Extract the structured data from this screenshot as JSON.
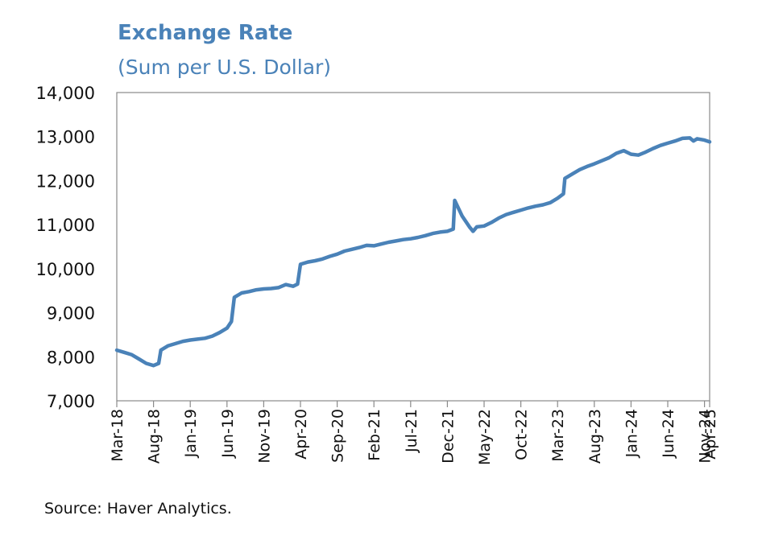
{
  "chart_data": {
    "type": "line",
    "title": "Exchange Rate",
    "subtitle": "(Sum per U.S. Dollar)",
    "xlabel": "",
    "ylabel": "",
    "ylim": [
      7000,
      14000
    ],
    "yticks": [
      "7,000",
      "8,000",
      "9,000",
      "10,000",
      "11,000",
      "12,000",
      "13,000",
      "14,000"
    ],
    "x_tick_labels": [
      "Mar-18",
      "Aug-18",
      "Jan-19",
      "Jun-19",
      "Nov-19",
      "Apr-20",
      "Sep-20",
      "Feb-21",
      "Jul-21",
      "Dec-21",
      "May-22",
      "Oct-22",
      "Mar-23",
      "Aug-23",
      "Jan-24",
      "Jun-24",
      "Nov-24",
      "Apr-25"
    ],
    "grid": false,
    "legend": "none",
    "line_color": "#4a82b8",
    "series": [
      {
        "name": "Sum per U.S. Dollar",
        "points": [
          [
            0,
            8150
          ],
          [
            1,
            8100
          ],
          [
            2,
            8050
          ],
          [
            3,
            7950
          ],
          [
            4,
            7850
          ],
          [
            5,
            7800
          ],
          [
            5.7,
            7850
          ],
          [
            6,
            8150
          ],
          [
            7,
            8250
          ],
          [
            8,
            8300
          ],
          [
            9,
            8350
          ],
          [
            10,
            8380
          ],
          [
            11,
            8400
          ],
          [
            12,
            8420
          ],
          [
            13,
            8470
          ],
          [
            14,
            8550
          ],
          [
            15,
            8650
          ],
          [
            15.6,
            8800
          ],
          [
            16,
            9350
          ],
          [
            17,
            9450
          ],
          [
            18,
            9480
          ],
          [
            19,
            9520
          ],
          [
            20,
            9540
          ],
          [
            21,
            9550
          ],
          [
            22,
            9570
          ],
          [
            23,
            9640
          ],
          [
            24,
            9600
          ],
          [
            24.6,
            9650
          ],
          [
            25,
            10100
          ],
          [
            26,
            10150
          ],
          [
            27,
            10180
          ],
          [
            28,
            10220
          ],
          [
            29,
            10280
          ],
          [
            30,
            10330
          ],
          [
            31,
            10400
          ],
          [
            32,
            10440
          ],
          [
            33,
            10480
          ],
          [
            34,
            10530
          ],
          [
            35,
            10520
          ],
          [
            36,
            10560
          ],
          [
            37,
            10600
          ],
          [
            38,
            10630
          ],
          [
            39,
            10660
          ],
          [
            40,
            10680
          ],
          [
            41,
            10710
          ],
          [
            42,
            10750
          ],
          [
            43,
            10800
          ],
          [
            44,
            10830
          ],
          [
            45,
            10850
          ],
          [
            45.8,
            10900
          ],
          [
            46,
            11550
          ],
          [
            47,
            11200
          ],
          [
            48,
            10950
          ],
          [
            48.5,
            10850
          ],
          [
            49,
            10950
          ],
          [
            50,
            10970
          ],
          [
            51,
            11050
          ],
          [
            52,
            11150
          ],
          [
            53,
            11230
          ],
          [
            54,
            11280
          ],
          [
            55,
            11330
          ],
          [
            56,
            11380
          ],
          [
            57,
            11420
          ],
          [
            58,
            11450
          ],
          [
            59,
            11500
          ],
          [
            60,
            11600
          ],
          [
            60.8,
            11700
          ],
          [
            61,
            12050
          ],
          [
            62,
            12150
          ],
          [
            63,
            12250
          ],
          [
            64,
            12320
          ],
          [
            65,
            12380
          ],
          [
            66,
            12450
          ],
          [
            67,
            12520
          ],
          [
            68,
            12620
          ],
          [
            69,
            12680
          ],
          [
            70,
            12600
          ],
          [
            71,
            12580
          ],
          [
            72,
            12650
          ],
          [
            73,
            12730
          ],
          [
            74,
            12800
          ],
          [
            75,
            12850
          ],
          [
            76,
            12900
          ],
          [
            77,
            12960
          ],
          [
            78,
            12970
          ],
          [
            78.5,
            12900
          ],
          [
            79,
            12950
          ],
          [
            80,
            12920
          ],
          [
            80.7,
            12880
          ]
        ]
      }
    ]
  },
  "source": "Source: Haver Analytics."
}
